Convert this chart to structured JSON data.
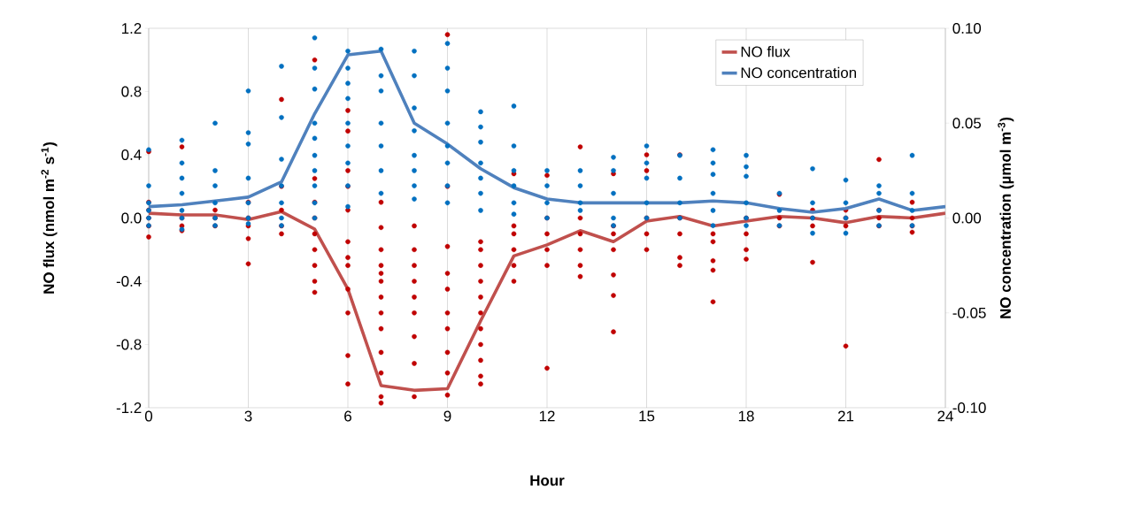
{
  "chart_data": {
    "type": "line",
    "xlabel": "Hour",
    "ylabel": "NO flux (nmol m$^{-2}$ s$^{-1}$)",
    "y2label": "NO concentration (µmol m$^{-3}$)",
    "xlim": [
      0,
      24
    ],
    "xticks": [
      0,
      3,
      6,
      9,
      12,
      15,
      18,
      21,
      24
    ],
    "ylim": [
      -1.2,
      1.2
    ],
    "yticks": [
      -1.2,
      -0.8,
      -0.4,
      {
        "value": 0,
        "label": "0.0"
      },
      0.4,
      0.8,
      1.2
    ],
    "y2lim": [
      -0.1,
      0.1
    ],
    "y2ticks": [
      {
        "value": -0.1,
        "label": "-0.10"
      },
      {
        "value": -0.05,
        "label": "-0.05"
      },
      {
        "value": 0,
        "label": "0.00"
      },
      {
        "value": 0.05,
        "label": "0.05"
      },
      {
        "value": 0.1,
        "label": "0.10"
      }
    ],
    "grid": "x",
    "legend": "top right",
    "series": [
      {
        "type": "scatter",
        "marker": "circle",
        "color": "#c00000",
        "x": [
          0,
          0,
          0,
          0,
          0,
          0,
          1,
          1,
          1,
          1,
          2,
          2,
          2,
          3,
          3,
          3,
          3,
          3,
          4,
          4,
          4,
          4,
          4,
          5,
          5,
          5,
          5,
          5,
          5,
          5,
          5,
          5,
          6,
          6,
          6,
          6,
          6,
          6,
          6,
          6,
          6,
          6,
          6,
          6,
          7,
          7,
          7,
          7,
          7,
          7,
          7,
          7,
          7,
          7,
          7,
          7,
          7,
          8,
          8,
          8,
          8,
          8,
          8,
          8,
          8,
          8,
          9,
          9,
          9,
          9,
          9,
          9,
          9,
          9,
          9,
          9,
          10,
          10,
          10,
          10,
          10,
          10,
          10,
          10,
          10,
          10,
          10,
          11,
          11,
          11,
          11,
          11,
          11,
          12,
          12,
          12,
          12,
          12,
          12,
          13,
          13,
          13,
          13,
          13,
          13,
          14,
          14,
          14,
          14,
          14,
          14,
          14,
          15,
          15,
          15,
          15,
          15,
          16,
          16,
          16,
          16,
          16,
          17,
          17,
          17,
          17,
          17,
          18,
          18,
          18,
          18,
          19,
          19,
          19,
          20,
          20,
          20,
          20,
          21,
          21,
          21,
          21,
          22,
          22,
          22,
          22,
          23,
          23,
          23,
          23
        ],
        "values": [
          0.42,
          0.1,
          0.05,
          0.0,
          -0.05,
          -0.12,
          0.45,
          0.0,
          -0.05,
          -0.08,
          0.05,
          0.0,
          -0.05,
          0.1,
          0.0,
          -0.05,
          -0.13,
          -0.29,
          0.75,
          0.2,
          0.05,
          -0.05,
          -0.1,
          1.0,
          0.25,
          0.1,
          0.0,
          -0.1,
          -0.2,
          -0.3,
          -0.4,
          -0.47,
          0.68,
          0.55,
          0.3,
          0.2,
          0.05,
          -0.15,
          -0.25,
          -0.3,
          -0.45,
          -0.6,
          -0.87,
          -1.05,
          0.1,
          -0.06,
          -0.2,
          -0.3,
          -0.35,
          -0.4,
          -0.5,
          -0.6,
          -0.7,
          -0.85,
          -0.98,
          -1.13,
          -1.17,
          -0.05,
          -0.2,
          -0.3,
          -0.4,
          -0.5,
          -0.6,
          -0.75,
          -0.92,
          -1.13,
          1.16,
          0.2,
          -0.18,
          -0.35,
          -0.45,
          -0.6,
          -0.7,
          -0.85,
          -0.98,
          -1.12,
          -0.15,
          -0.2,
          -0.3,
          -0.4,
          -0.5,
          -0.6,
          -0.7,
          -0.8,
          -0.9,
          -1.0,
          -1.05,
          0.28,
          -0.05,
          -0.1,
          -0.2,
          -0.3,
          -0.4,
          0.27,
          0.0,
          -0.1,
          -0.2,
          -0.3,
          -0.95,
          0.45,
          0.0,
          -0.1,
          -0.2,
          -0.3,
          -0.37,
          0.28,
          -0.05,
          -0.1,
          -0.2,
          -0.36,
          -0.49,
          -0.72,
          0.4,
          0.3,
          0.0,
          -0.1,
          -0.2,
          0.4,
          0.0,
          -0.1,
          -0.25,
          -0.3,
          -0.1,
          -0.15,
          -0.27,
          -0.33,
          -0.53,
          0.0,
          -0.1,
          -0.2,
          -0.26,
          0.15,
          0.0,
          -0.05,
          0.05,
          0.0,
          -0.05,
          -0.28,
          0.05,
          0.0,
          -0.05,
          -0.81,
          0.37,
          0.05,
          0.0,
          -0.05,
          0.1,
          0.0,
          -0.05,
          -0.09
        ]
      },
      {
        "type": "scatter",
        "marker": "circle",
        "axis": "y2",
        "color": "#0070c0",
        "x": [
          0,
          0,
          0,
          0,
          0,
          0,
          1,
          1,
          1,
          1,
          1,
          1,
          1,
          2,
          2,
          2,
          2,
          2,
          2,
          3,
          3,
          3,
          3,
          3,
          3,
          3,
          4,
          4,
          4,
          4,
          4,
          4,
          4,
          5,
          5,
          5,
          5,
          5,
          5,
          5,
          5,
          5,
          5,
          6,
          6,
          6,
          6,
          6,
          6,
          6,
          6,
          6,
          7,
          7,
          7,
          7,
          7,
          7,
          7,
          8,
          8,
          8,
          8,
          8,
          8,
          8,
          8,
          9,
          9,
          9,
          9,
          9,
          9,
          9,
          9,
          10,
          10,
          10,
          10,
          10,
          10,
          10,
          11,
          11,
          11,
          11,
          11,
          11,
          12,
          12,
          12,
          12,
          13,
          13,
          13,
          13,
          14,
          14,
          14,
          14,
          14,
          15,
          15,
          15,
          15,
          15,
          16,
          16,
          16,
          16,
          17,
          17,
          17,
          17,
          17,
          17,
          18,
          18,
          18,
          18,
          18,
          18,
          19,
          19,
          19,
          20,
          20,
          20,
          20,
          21,
          21,
          21,
          21,
          22,
          22,
          22,
          22,
          23,
          23,
          23,
          23
        ],
        "values": [
          0.036,
          0.017,
          0.008,
          0.004,
          0.0,
          -0.004,
          0.041,
          0.029,
          0.021,
          0.013,
          0.004,
          0.0,
          -0.006,
          0.05,
          0.025,
          0.017,
          0.008,
          0.0,
          -0.004,
          0.067,
          0.045,
          0.039,
          0.021,
          0.008,
          0.0,
          -0.003,
          0.08,
          0.053,
          0.031,
          0.017,
          0.008,
          0.0,
          -0.004,
          0.095,
          0.079,
          0.068,
          0.05,
          0.042,
          0.033,
          0.025,
          0.017,
          0.008,
          0.0,
          0.088,
          0.079,
          0.071,
          0.063,
          0.05,
          0.038,
          0.029,
          0.017,
          0.006,
          0.089,
          0.075,
          0.067,
          0.05,
          0.038,
          0.025,
          0.013,
          0.088,
          0.075,
          0.058,
          0.046,
          0.033,
          0.025,
          0.017,
          0.01,
          0.092,
          0.079,
          0.067,
          0.05,
          0.038,
          0.029,
          0.017,
          0.008,
          0.056,
          0.048,
          0.04,
          0.029,
          0.021,
          0.013,
          0.004,
          0.059,
          0.038,
          0.025,
          0.017,
          0.008,
          0.002,
          0.025,
          0.017,
          0.008,
          0.0,
          0.025,
          0.017,
          0.008,
          0.004,
          0.032,
          0.025,
          0.013,
          0.0,
          -0.004,
          0.038,
          0.029,
          0.021,
          0.008,
          0.0,
          0.033,
          0.021,
          0.008,
          0.0,
          0.036,
          0.029,
          0.023,
          0.013,
          0.004,
          -0.004,
          0.033,
          0.027,
          0.022,
          0.008,
          0.0,
          -0.004,
          0.013,
          0.004,
          -0.004,
          0.026,
          0.008,
          0.0,
          -0.008,
          0.02,
          0.008,
          0.0,
          -0.008,
          0.017,
          0.013,
          0.004,
          -0.004,
          0.033,
          0.013,
          0.004,
          -0.004
        ]
      },
      {
        "type": "line",
        "name": "NO flux",
        "color": "#c0504d",
        "marker": "none",
        "line_style": "solid",
        "x": [
          0,
          1,
          2,
          3,
          4,
          5,
          6,
          7,
          8,
          9,
          10,
          11,
          12,
          13,
          14,
          15,
          16,
          17,
          18,
          19,
          20,
          21,
          22,
          23,
          24
        ],
        "values": [
          0.03,
          0.02,
          0.02,
          -0.01,
          0.04,
          -0.07,
          -0.45,
          -1.06,
          -1.09,
          -1.08,
          -0.65,
          -0.24,
          -0.17,
          -0.08,
          -0.15,
          -0.02,
          0.01,
          -0.05,
          -0.02,
          0.01,
          0.0,
          -0.03,
          0.01,
          0.0,
          0.03
        ]
      },
      {
        "type": "line",
        "name": "NO concentration",
        "axis": "y2",
        "color": "#4f81bd",
        "marker": "none",
        "line_style": "solid",
        "x": [
          0,
          1,
          2,
          3,
          4,
          5,
          6,
          7,
          8,
          9,
          10,
          11,
          12,
          13,
          14,
          15,
          16,
          17,
          18,
          19,
          20,
          21,
          22,
          23,
          24
        ],
        "values": [
          0.006,
          0.007,
          0.009,
          0.011,
          0.019,
          0.055,
          0.086,
          0.088,
          0.05,
          0.039,
          0.026,
          0.016,
          0.01,
          0.008,
          0.008,
          0.008,
          0.008,
          0.009,
          0.008,
          0.005,
          0.003,
          0.005,
          0.01,
          0.004,
          0.006
        ]
      }
    ]
  }
}
